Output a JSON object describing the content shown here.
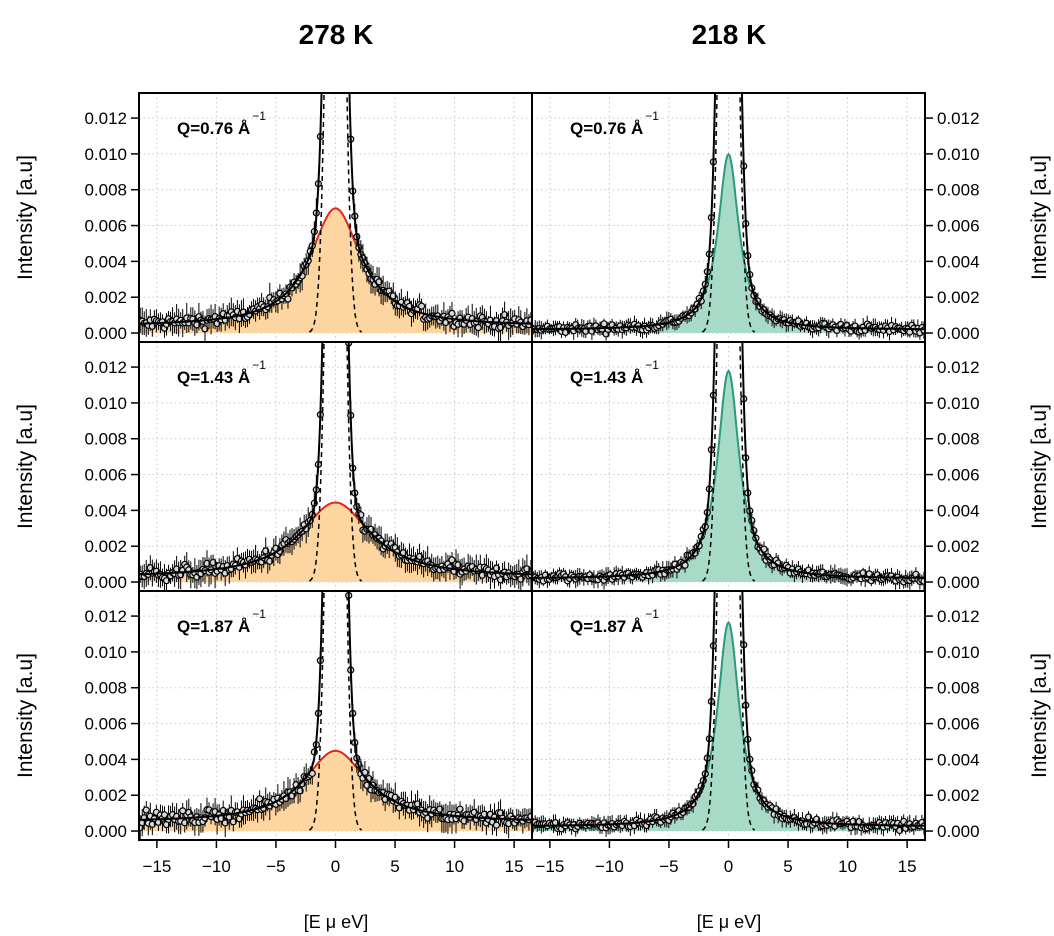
{
  "chart_data": {
    "type": "line",
    "column_titles": [
      "278 K",
      "218 K"
    ],
    "xlabel": "[E μ eV]",
    "ylabel": "Intensity [a.u]",
    "xlim": [
      -16.5,
      16.5
    ],
    "ylim": [
      -0.0005,
      0.0134
    ],
    "x_ticks": [
      -15,
      -10,
      -5,
      0,
      5,
      10,
      15
    ],
    "x_tick_labels": [
      "−15",
      "−10",
      "−5",
      "0",
      "5",
      "10",
      "15"
    ],
    "y_ticks": [
      0.0,
      0.002,
      0.004,
      0.006,
      0.008,
      0.01,
      0.012
    ],
    "y_tick_labels": [
      "0.000",
      "0.002",
      "0.004",
      "0.006",
      "0.008",
      "0.010",
      "0.012"
    ],
    "grid": true,
    "colors": {
      "warm_fill": "#fdd5a0",
      "warm_line": "#e8251b",
      "cold_fill": "#a8dbc7",
      "cold_line": "#2a9a7f",
      "data_point": "#d9d9d9"
    },
    "panels": [
      {
        "temperature": "278 K",
        "q_label": "Q=0.76",
        "q_unit": "Å",
        "q_exp": "−1",
        "qens_peak": 0.0066,
        "qens_hwhm": 2.6,
        "background": 0.0006,
        "elastic_hwhm": 0.7,
        "elastic_peak": 0.05
      },
      {
        "temperature": "218 K",
        "q_label": "Q=0.76",
        "q_unit": "Å",
        "q_exp": "−1",
        "qens_peak": 0.0098,
        "qens_hwhm": 1.05,
        "background": 0.0003,
        "elastic_hwhm": 0.7,
        "elastic_peak": 0.05
      },
      {
        "temperature": "278 K",
        "q_label": "Q=1.43",
        "q_unit": "Å",
        "q_exp": "−1",
        "qens_peak": 0.0042,
        "qens_hwhm": 3.6,
        "background": 0.0004,
        "elastic_hwhm": 0.7,
        "elastic_peak": 0.05
      },
      {
        "temperature": "218 K",
        "q_label": "Q=1.43",
        "q_unit": "Å",
        "q_exp": "−1",
        "qens_peak": 0.0116,
        "qens_hwhm": 1.1,
        "background": 0.0003,
        "elastic_hwhm": 0.7,
        "elastic_peak": 0.05
      },
      {
        "temperature": "278 K",
        "q_label": "Q=1.87",
        "q_unit": "Å",
        "q_exp": "−1",
        "qens_peak": 0.004,
        "qens_hwhm": 3.2,
        "background": 0.0008,
        "elastic_hwhm": 0.7,
        "elastic_peak": 0.05
      },
      {
        "temperature": "218 K",
        "q_label": "Q=1.87",
        "q_unit": "Å",
        "q_exp": "−1",
        "qens_peak": 0.0114,
        "qens_hwhm": 1.1,
        "background": 0.0004,
        "elastic_hwhm": 0.7,
        "elastic_peak": 0.05
      }
    ]
  }
}
